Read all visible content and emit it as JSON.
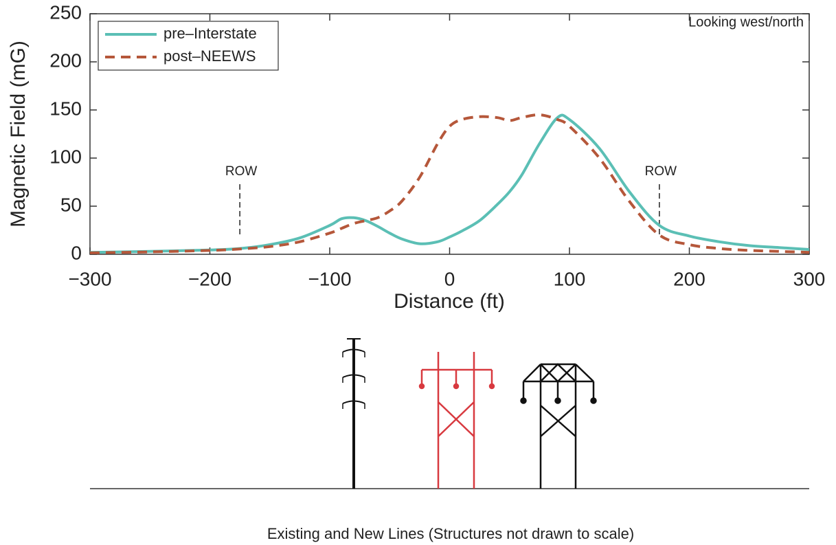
{
  "chart_data": {
    "type": "line",
    "x_label": "Distance (ft)",
    "y_label": "Magnetic Field (mG)",
    "x": [
      -300,
      -250,
      -200,
      -175,
      -150,
      -125,
      -100,
      -90,
      -80,
      -70,
      -60,
      -50,
      -40,
      -25,
      -10,
      0,
      10,
      25,
      40,
      50,
      60,
      75,
      90,
      100,
      125,
      150,
      175,
      200,
      225,
      250,
      275,
      300
    ],
    "series": [
      {
        "name": "pre–Interstate",
        "color": "#5bbfb5",
        "dashed": false,
        "values": [
          2,
          3,
          4.5,
          6,
          10,
          17,
          30,
          37,
          38,
          35,
          29,
          22,
          16,
          11,
          13,
          18,
          24,
          35,
          52,
          65,
          82,
          115,
          142,
          140,
          110,
          65,
          30,
          19,
          13,
          9,
          7,
          5
        ]
      },
      {
        "name": "post–NEEWS",
        "color": "#b5573a",
        "dashed": true,
        "values": [
          1.5,
          2.5,
          4,
          5.5,
          8,
          13,
          22,
          27,
          32,
          35,
          38,
          45,
          55,
          80,
          115,
          133,
          140,
          143,
          142,
          139,
          142,
          145,
          140,
          133,
          100,
          55,
          20,
          10,
          6,
          4,
          3,
          2
        ]
      }
    ],
    "xlim": [
      -300,
      300
    ],
    "ylim": [
      0,
      250
    ],
    "xticks": [
      {
        "value": -300,
        "label": "−300"
      },
      {
        "value": -200,
        "label": "−200"
      },
      {
        "value": -100,
        "label": "−100"
      },
      0,
      100,
      200,
      300
    ],
    "yticks": [
      0,
      50,
      100,
      150,
      200,
      250
    ],
    "annotations": [
      {
        "text": "ROW",
        "x": -175
      },
      {
        "text": "ROW",
        "x": 175
      }
    ],
    "view_note": "Looking west/north",
    "legend": "upper left",
    "caption": "Existing and New Lines (Structures not drawn to scale)"
  }
}
